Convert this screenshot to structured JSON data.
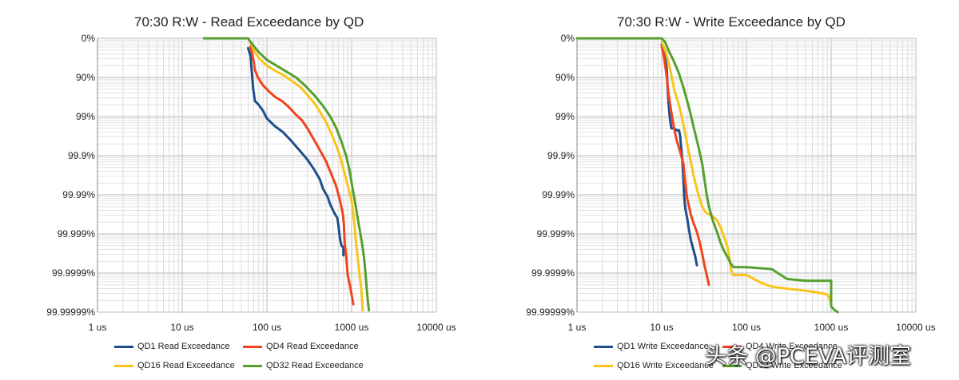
{
  "chart_data": [
    {
      "type": "line",
      "title": "70:30 R:W - Read Exceedance by QD",
      "x_scale": "log",
      "xlim": [
        1,
        10000
      ],
      "x_ticks": [
        "1 us",
        "10 us",
        "100 us",
        "1000 us",
        "10000 us"
      ],
      "y_scale": "exceedance (nines)",
      "y_ticks": [
        "0%",
        "90%",
        "99%",
        "99.9%",
        "99.99%",
        "99.999%",
        "99.9999%",
        "99.99999%"
      ],
      "ylim": [
        0,
        7
      ],
      "grid": true,
      "legend_position": "bottom",
      "series": [
        {
          "name": "QD1 Read Exceedance",
          "color": "#1f4e8c",
          "x": [
            60,
            62,
            64,
            65,
            67,
            69,
            70,
            72,
            76,
            80,
            90,
            100,
            125,
            155,
            190,
            240,
            300,
            360,
            420,
            460,
            520,
            560,
            620,
            680,
            700,
            720,
            740,
            760,
            800,
            800
          ],
          "y": [
            0.25,
            0.35,
            0.45,
            0.65,
            1.0,
            1.3,
            1.4,
            1.6,
            1.65,
            1.7,
            1.85,
            2.05,
            2.25,
            2.4,
            2.6,
            2.85,
            3.1,
            3.35,
            3.6,
            3.85,
            4.05,
            4.25,
            4.45,
            4.6,
            4.8,
            5.05,
            5.2,
            5.3,
            5.35,
            5.55
          ]
        },
        {
          "name": "QD4 Read Exceedance",
          "color": "#f0451e",
          "x": [
            64,
            67,
            70,
            72,
            78,
            90,
            105,
            125,
            150,
            180,
            220,
            260,
            300,
            350,
            420,
            500,
            570,
            650,
            730,
            790,
            810,
            830,
            860,
            900,
            960,
            1050
          ],
          "y": [
            0.2,
            0.4,
            0.6,
            0.8,
            1.0,
            1.2,
            1.35,
            1.5,
            1.6,
            1.75,
            1.95,
            2.1,
            2.3,
            2.55,
            2.85,
            3.15,
            3.45,
            3.75,
            4.15,
            4.5,
            4.75,
            5.25,
            5.55,
            6.05,
            6.35,
            6.8
          ]
        },
        {
          "name": "QD16 Read Exceedance",
          "color": "#f7c51b",
          "x": [
            64,
            70,
            80,
            100,
            130,
            160,
            200,
            250,
            300,
            360,
            430,
            500,
            580,
            660,
            740,
            800,
            860,
            920,
            990,
            1030,
            1060,
            1090,
            1120,
            1160,
            1200,
            1250,
            1300,
            1350
          ],
          "y": [
            0.1,
            0.3,
            0.5,
            0.7,
            0.85,
            0.95,
            1.1,
            1.25,
            1.45,
            1.65,
            1.9,
            2.15,
            2.45,
            2.75,
            3.05,
            3.35,
            3.6,
            3.85,
            4.1,
            4.35,
            4.6,
            4.85,
            5.15,
            5.45,
            5.75,
            6.1,
            6.4,
            6.95
          ]
        },
        {
          "name": "QD32 Read Exceedance",
          "color": "#55a02e",
          "x": [
            18,
            20,
            30,
            40,
            50,
            55,
            60,
            62,
            70,
            80,
            100,
            130,
            170,
            220,
            280,
            360,
            450,
            560,
            660,
            760,
            860,
            940,
            1000,
            1050,
            1110,
            1180,
            1260,
            1330,
            1400,
            1450,
            1500,
            1550,
            1600
          ],
          "y": [
            0,
            0,
            0,
            0,
            0,
            0,
            0,
            0.05,
            0.2,
            0.35,
            0.55,
            0.7,
            0.85,
            1.0,
            1.2,
            1.45,
            1.7,
            2.0,
            2.3,
            2.65,
            3.0,
            3.35,
            3.7,
            3.95,
            4.25,
            4.6,
            4.95,
            5.25,
            5.6,
            5.95,
            6.35,
            6.7,
            6.95
          ]
        }
      ]
    },
    {
      "type": "line",
      "title": "70:30 R:W - Write Exceedance by QD",
      "x_scale": "log",
      "xlim": [
        1,
        10000
      ],
      "x_ticks": [
        "1 us",
        "10 us",
        "100 us",
        "1000 us",
        "10000 us"
      ],
      "y_scale": "exceedance (nines)",
      "y_ticks": [
        "0%",
        "90%",
        "99%",
        "99.9%",
        "99.99%",
        "99.999%",
        "99.9999%",
        "99.99999%"
      ],
      "ylim": [
        0,
        7
      ],
      "grid": true,
      "legend_position": "bottom",
      "series": [
        {
          "name": "QD1 Write Exceedance",
          "color": "#1f4e8c",
          "x": [
            10,
            10.5,
            11,
            11.5,
            11.7,
            12,
            12.3,
            12.6,
            13,
            14,
            15,
            16,
            16.5,
            17,
            17.5,
            18,
            18.5,
            19,
            20,
            21,
            22,
            23,
            24,
            25,
            26
          ],
          "y": [
            0.15,
            0.3,
            0.5,
            0.8,
            1.2,
            1.6,
            1.9,
            2.1,
            2.3,
            2.3,
            2.35,
            2.35,
            2.5,
            2.8,
            3.1,
            3.6,
            4.1,
            4.35,
            4.6,
            4.9,
            5.15,
            5.3,
            5.45,
            5.6,
            5.8
          ]
        },
        {
          "name": "QD4 Write Exceedance",
          "color": "#f0451e",
          "x": [
            10,
            10.5,
            11,
            11.5,
            12,
            13,
            14,
            15,
            16,
            17,
            18,
            19,
            20,
            21,
            22,
            24,
            26,
            28,
            30,
            32,
            34,
            36
          ],
          "y": [
            0.2,
            0.4,
            0.7,
            1.0,
            1.4,
            1.9,
            2.3,
            2.6,
            2.8,
            3.0,
            3.2,
            3.7,
            4.1,
            4.3,
            4.5,
            4.75,
            4.95,
            5.2,
            5.5,
            5.8,
            6.05,
            6.3
          ]
        },
        {
          "name": "QD16 Write Exceedance",
          "color": "#f7c51b",
          "x": [
            10,
            11,
            12,
            13,
            14,
            16,
            18,
            20,
            22,
            24,
            26,
            28,
            30,
            33,
            36,
            40,
            45,
            50,
            55,
            60,
            63,
            66,
            70,
            80,
            100,
            150,
            200,
            300,
            500,
            700,
            900,
            960,
            1000
          ],
          "y": [
            0.1,
            0.3,
            0.6,
            0.95,
            1.3,
            1.7,
            2.2,
            2.7,
            3.15,
            3.55,
            3.85,
            4.1,
            4.3,
            4.45,
            4.5,
            4.55,
            4.65,
            4.85,
            5.1,
            5.35,
            5.6,
            5.95,
            6.05,
            6.05,
            6.05,
            6.25,
            6.35,
            6.4,
            6.45,
            6.5,
            6.55,
            6.65,
            6.8
          ]
        },
        {
          "name": "QD32 Write Exceedance",
          "color": "#55a02e",
          "x": [
            1,
            5,
            9,
            10,
            11,
            12,
            14,
            16,
            18,
            20,
            22,
            24,
            27,
            30,
            32,
            34,
            36,
            40,
            45,
            50,
            55,
            60,
            65,
            70,
            100,
            200,
            300,
            500,
            800,
            1000,
            1000,
            1050,
            1100,
            1200
          ],
          "y": [
            0,
            0,
            0,
            0,
            0.1,
            0.3,
            0.6,
            0.9,
            1.25,
            1.6,
            1.95,
            2.3,
            2.75,
            3.2,
            3.6,
            4.0,
            4.3,
            4.65,
            4.95,
            5.25,
            5.45,
            5.6,
            5.75,
            5.85,
            5.85,
            5.9,
            6.15,
            6.2,
            6.2,
            6.2,
            6.85,
            6.9,
            6.95,
            7.0
          ]
        }
      ]
    }
  ],
  "watermark": "头条 @PCEVA评测室"
}
